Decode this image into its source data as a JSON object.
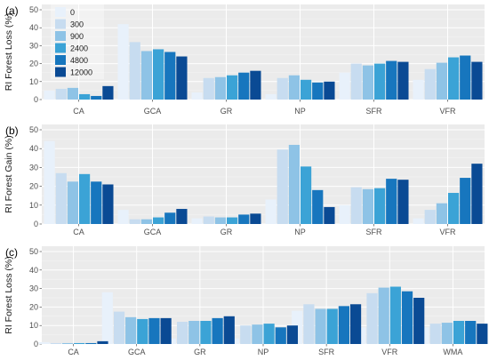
{
  "colors": {
    "panel_bg": "#ebebeb",
    "grid_major": "#ffffff",
    "series": [
      "#e8f1fb",
      "#c7dcf0",
      "#8ec3e6",
      "#3ba3d6",
      "#1776be",
      "#0a4a94"
    ]
  },
  "legend": {
    "panel": 0,
    "labels": [
      "0",
      "300",
      "900",
      "2400",
      "4800",
      "12000"
    ]
  },
  "chart_data": [
    {
      "type": "bar",
      "panel_label": "(a)",
      "ylabel": "RI Forest Loss (%)",
      "ylim": [
        0,
        50
      ],
      "yticks": [
        0,
        10,
        20,
        30,
        40,
        50
      ],
      "categories": [
        "CA",
        "GCA",
        "GR",
        "NP",
        "SFR",
        "VFR"
      ],
      "series": [
        {
          "name": "0",
          "values": [
            5,
            42,
            4,
            3,
            15,
            11
          ]
        },
        {
          "name": "300",
          "values": [
            6,
            32,
            12,
            12,
            20,
            17
          ]
        },
        {
          "name": "900",
          "values": [
            6.5,
            27,
            12.5,
            13.5,
            19,
            20.5
          ]
        },
        {
          "name": "2400",
          "values": [
            3,
            28,
            13.5,
            11,
            20,
            23.5
          ]
        },
        {
          "name": "4800",
          "values": [
            2,
            26.5,
            15,
            9.5,
            21.5,
            24.5
          ]
        },
        {
          "name": "12000",
          "values": [
            7.5,
            24,
            16,
            10,
            21,
            21
          ]
        }
      ]
    },
    {
      "type": "bar",
      "panel_label": "(b)",
      "ylabel": "RI Forest Gain (%)",
      "ylim": [
        0,
        50
      ],
      "yticks": [
        0,
        10,
        20,
        30,
        40,
        50
      ],
      "categories": [
        "CA",
        "GCA",
        "GR",
        "NP",
        "SFR",
        "VFR"
      ],
      "series": [
        {
          "name": "0",
          "values": [
            44,
            7.5,
            3,
            13,
            10,
            3
          ]
        },
        {
          "name": "300",
          "values": [
            27,
            2.5,
            4,
            39.5,
            19.5,
            7.5
          ]
        },
        {
          "name": "900",
          "values": [
            22.5,
            2.5,
            3.5,
            42,
            18.5,
            11
          ]
        },
        {
          "name": "2400",
          "values": [
            26.5,
            3.5,
            3.5,
            30.5,
            19,
            16.5
          ]
        },
        {
          "name": "4800",
          "values": [
            22.5,
            6,
            5,
            18,
            24,
            24.5
          ]
        },
        {
          "name": "12000",
          "values": [
            21,
            8,
            5.5,
            9,
            23.5,
            32
          ]
        }
      ]
    },
    {
      "type": "bar",
      "panel_label": "(c)",
      "ylabel": "RI Forest Loss (%)",
      "ylim": [
        0,
        50
      ],
      "yticks": [
        0,
        10,
        20,
        30,
        40,
        50
      ],
      "categories": [
        "CA",
        "GCA",
        "GR",
        "NP",
        "SFR",
        "VFR",
        "WMA"
      ],
      "series": [
        {
          "name": "0",
          "values": [
            1,
            28,
            3,
            3,
            18,
            9,
            9
          ]
        },
        {
          "name": "300",
          "values": [
            0.5,
            17.5,
            12,
            10,
            21.5,
            27.5,
            11
          ]
        },
        {
          "name": "900",
          "values": [
            0.5,
            14.5,
            12.5,
            10.5,
            19,
            30.5,
            11.5
          ]
        },
        {
          "name": "2400",
          "values": [
            0.5,
            13.5,
            12.5,
            11,
            19,
            31,
            12.5
          ]
        },
        {
          "name": "4800",
          "values": [
            0.5,
            14,
            14,
            9,
            20.5,
            28.5,
            12.5
          ]
        },
        {
          "name": "12000",
          "values": [
            1.5,
            14,
            15,
            10,
            21.5,
            25,
            11
          ]
        }
      ]
    }
  ]
}
